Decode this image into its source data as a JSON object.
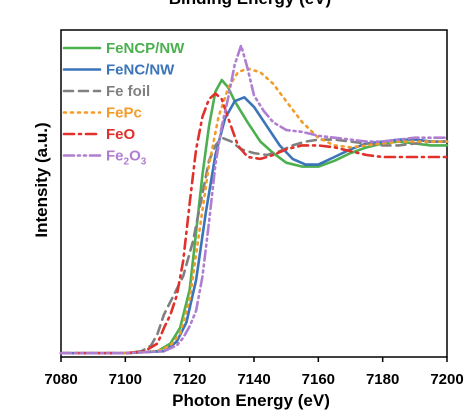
{
  "top_partial_title": "Binding Energy (eV)",
  "chart_data": {
    "type": "line",
    "xlabel": "Photon Energy (eV)",
    "ylabel": "Intensity (a.u.)",
    "xlim": [
      7080,
      7200
    ],
    "ylim": [
      0,
      1.7
    ],
    "xticks": [
      "7080",
      "7100",
      "7120",
      "7140",
      "7160",
      "7180",
      "7200"
    ],
    "legend_position": "top-left",
    "series": [
      {
        "name": "FeNCP/NW",
        "color": "#4caf50",
        "dash": "solid",
        "points": [
          [
            7080,
            0.02
          ],
          [
            7100,
            0.02
          ],
          [
            7110,
            0.03
          ],
          [
            7114,
            0.07
          ],
          [
            7117,
            0.15
          ],
          [
            7120,
            0.35
          ],
          [
            7122,
            0.65
          ],
          [
            7124,
            0.95
          ],
          [
            7126,
            1.2
          ],
          [
            7128,
            1.38
          ],
          [
            7130,
            1.44
          ],
          [
            7132,
            1.4
          ],
          [
            7134,
            1.33
          ],
          [
            7138,
            1.22
          ],
          [
            7142,
            1.12
          ],
          [
            7146,
            1.06
          ],
          [
            7150,
            1.01
          ],
          [
            7155,
            0.99
          ],
          [
            7160,
            0.99
          ],
          [
            7165,
            1.02
          ],
          [
            7170,
            1.06
          ],
          [
            7175,
            1.09
          ],
          [
            7180,
            1.11
          ],
          [
            7185,
            1.12
          ],
          [
            7190,
            1.11
          ],
          [
            7195,
            1.1
          ],
          [
            7200,
            1.1
          ]
        ]
      },
      {
        "name": "FeNC/NW",
        "color": "#3b74b8",
        "dash": "solid",
        "points": [
          [
            7080,
            0.02
          ],
          [
            7100,
            0.02
          ],
          [
            7112,
            0.03
          ],
          [
            7116,
            0.08
          ],
          [
            7119,
            0.18
          ],
          [
            7122,
            0.4
          ],
          [
            7125,
            0.75
          ],
          [
            7128,
            1.05
          ],
          [
            7131,
            1.24
          ],
          [
            7134,
            1.33
          ],
          [
            7137,
            1.35
          ],
          [
            7140,
            1.3
          ],
          [
            7144,
            1.2
          ],
          [
            7148,
            1.1
          ],
          [
            7152,
            1.03
          ],
          [
            7156,
            1.0
          ],
          [
            7160,
            1.0
          ],
          [
            7165,
            1.04
          ],
          [
            7170,
            1.08
          ],
          [
            7175,
            1.11
          ],
          [
            7180,
            1.12
          ],
          [
            7185,
            1.13
          ],
          [
            7190,
            1.13
          ],
          [
            7195,
            1.12
          ],
          [
            7200,
            1.12
          ]
        ]
      },
      {
        "name": "Fe foil",
        "color": "#808080",
        "dash": "dash",
        "points": [
          [
            7080,
            0.02
          ],
          [
            7100,
            0.02
          ],
          [
            7105,
            0.03
          ],
          [
            7108,
            0.06
          ],
          [
            7110,
            0.12
          ],
          [
            7112,
            0.22
          ],
          [
            7115,
            0.32
          ],
          [
            7118,
            0.42
          ],
          [
            7121,
            0.6
          ],
          [
            7124,
            0.85
          ],
          [
            7126,
            1.02
          ],
          [
            7128,
            1.1
          ],
          [
            7130,
            1.14
          ],
          [
            7133,
            1.12
          ],
          [
            7136,
            1.08
          ],
          [
            7140,
            1.06
          ],
          [
            7144,
            1.05
          ],
          [
            7148,
            1.07
          ],
          [
            7152,
            1.1
          ],
          [
            7156,
            1.12
          ],
          [
            7160,
            1.13
          ],
          [
            7165,
            1.13
          ],
          [
            7170,
            1.12
          ],
          [
            7175,
            1.11
          ],
          [
            7180,
            1.1
          ],
          [
            7185,
            1.1
          ],
          [
            7190,
            1.11
          ],
          [
            7195,
            1.12
          ],
          [
            7200,
            1.12
          ]
        ]
      },
      {
        "name": "FePc",
        "color": "#f39c2a",
        "dash": "dot",
        "points": [
          [
            7080,
            0.02
          ],
          [
            7100,
            0.02
          ],
          [
            7110,
            0.03
          ],
          [
            7114,
            0.06
          ],
          [
            7117,
            0.12
          ],
          [
            7120,
            0.3
          ],
          [
            7123,
            0.65
          ],
          [
            7126,
            1.0
          ],
          [
            7129,
            1.25
          ],
          [
            7132,
            1.4
          ],
          [
            7135,
            1.48
          ],
          [
            7138,
            1.5
          ],
          [
            7142,
            1.48
          ],
          [
            7146,
            1.42
          ],
          [
            7150,
            1.33
          ],
          [
            7155,
            1.22
          ],
          [
            7160,
            1.14
          ],
          [
            7165,
            1.1
          ],
          [
            7170,
            1.09
          ],
          [
            7175,
            1.1
          ],
          [
            7180,
            1.11
          ],
          [
            7185,
            1.12
          ],
          [
            7190,
            1.12
          ],
          [
            7195,
            1.12
          ],
          [
            7200,
            1.12
          ]
        ]
      },
      {
        "name": "FeO",
        "color": "#e0312b",
        "dash": "dashdot",
        "points": [
          [
            7080,
            0.02
          ],
          [
            7100,
            0.02
          ],
          [
            7106,
            0.03
          ],
          [
            7110,
            0.07
          ],
          [
            7112,
            0.15
          ],
          [
            7114,
            0.22
          ],
          [
            7116,
            0.32
          ],
          [
            7118,
            0.5
          ],
          [
            7120,
            0.8
          ],
          [
            7122,
            1.08
          ],
          [
            7124,
            1.25
          ],
          [
            7126,
            1.34
          ],
          [
            7128,
            1.37
          ],
          [
            7130,
            1.34
          ],
          [
            7132,
            1.24
          ],
          [
            7135,
            1.1
          ],
          [
            7138,
            1.04
          ],
          [
            7142,
            1.03
          ],
          [
            7146,
            1.05
          ],
          [
            7150,
            1.08
          ],
          [
            7155,
            1.1
          ],
          [
            7160,
            1.1
          ],
          [
            7165,
            1.09
          ],
          [
            7170,
            1.07
          ],
          [
            7175,
            1.05
          ],
          [
            7180,
            1.04
          ],
          [
            7185,
            1.04
          ],
          [
            7190,
            1.04
          ],
          [
            7195,
            1.04
          ],
          [
            7200,
            1.04
          ]
        ]
      },
      {
        "name": "Fe2O3",
        "color": "#b07ed0",
        "dash": "dashdotdot",
        "points": [
          [
            7080,
            0.02
          ],
          [
            7100,
            0.02
          ],
          [
            7112,
            0.03
          ],
          [
            7116,
            0.06
          ],
          [
            7118,
            0.1
          ],
          [
            7120,
            0.16
          ],
          [
            7122,
            0.24
          ],
          [
            7124,
            0.42
          ],
          [
            7126,
            0.7
          ],
          [
            7128,
            1.0
          ],
          [
            7130,
            1.2
          ],
          [
            7132,
            1.35
          ],
          [
            7134,
            1.52
          ],
          [
            7136,
            1.62
          ],
          [
            7138,
            1.5
          ],
          [
            7140,
            1.36
          ],
          [
            7143,
            1.28
          ],
          [
            7146,
            1.22
          ],
          [
            7150,
            1.18
          ],
          [
            7155,
            1.17
          ],
          [
            7160,
            1.15
          ],
          [
            7165,
            1.14
          ],
          [
            7170,
            1.13
          ],
          [
            7175,
            1.12
          ],
          [
            7180,
            1.12
          ],
          [
            7185,
            1.13
          ],
          [
            7190,
            1.14
          ],
          [
            7195,
            1.14
          ],
          [
            7200,
            1.14
          ]
        ]
      }
    ]
  },
  "legend": {
    "items": [
      {
        "label": "FeNCP/NW",
        "color": "#4caf50",
        "dash": "solid"
      },
      {
        "label": "FeNC/NW",
        "color": "#3b74b8",
        "dash": "solid"
      },
      {
        "label": "Fe foil",
        "color": "#808080",
        "dash": "dash"
      },
      {
        "label": "FePc",
        "color": "#f39c2a",
        "dash": "dot"
      },
      {
        "label": "FeO",
        "color": "#e0312b",
        "dash": "dashdot"
      },
      {
        "label_main": "Fe",
        "sub1": "2",
        "mid": "O",
        "sub2": "3",
        "color": "#b07ed0",
        "dash": "dashdotdot"
      }
    ]
  }
}
